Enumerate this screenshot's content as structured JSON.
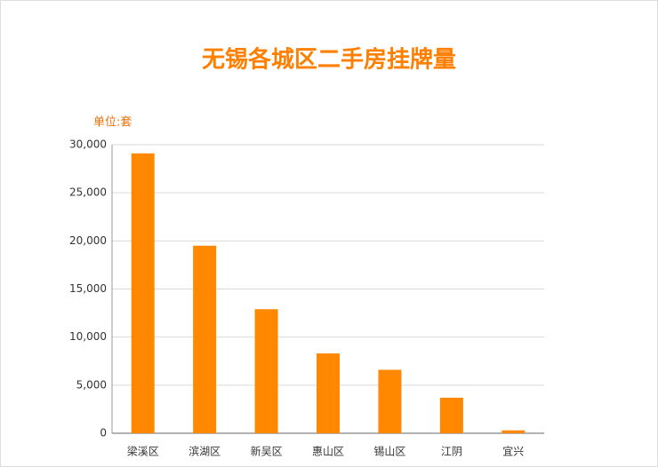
{
  "chart_data": {
    "type": "bar",
    "title": "无锡各城区二手房挂牌量",
    "unit_label": "单位:套",
    "categories": [
      "梁溪区",
      "滨湖区",
      "新吴区",
      "惠山区",
      "锡山区",
      "江阴",
      "宜兴"
    ],
    "values": [
      29100,
      19500,
      12900,
      8300,
      6600,
      3700,
      300
    ],
    "color": "#ff8800",
    "ylim": [
      0,
      30000
    ],
    "yticks": [
      0,
      {
        "value": 5000,
        "label": "5,000"
      },
      {
        "value": 10000,
        "label": "10,000"
      },
      {
        "value": 15000,
        "label": "15,000"
      },
      {
        "value": 20000,
        "label": "20,000"
      },
      {
        "value": 25000,
        "label": "25,000"
      },
      {
        "value": 30000,
        "label": "30,000"
      }
    ],
    "grid": true
  }
}
